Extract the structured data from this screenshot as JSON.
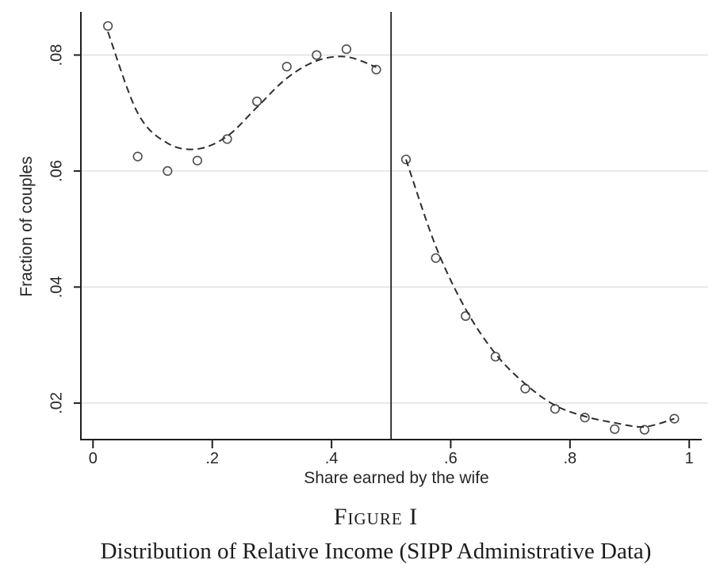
{
  "figure": {
    "label": "Figure I",
    "caption": "Distribution of Relative Income (SIPP Administrative Data)"
  },
  "chart_data": {
    "type": "scatter",
    "title": "",
    "xlabel": "Share earned by the wife",
    "ylabel": "Fraction of couples",
    "xlim": [
      -0.019,
      1.021
    ],
    "ylim": [
      0.0137,
      0.0873
    ],
    "xticks": [
      0,
      0.2,
      0.4,
      0.6,
      0.8,
      1
    ],
    "xtick_labels": [
      "0",
      ".2",
      ".4",
      ".6",
      ".8",
      "1"
    ],
    "yticks": [
      0.02,
      0.04,
      0.06,
      0.08
    ],
    "ytick_labels": [
      ".02",
      ".04",
      ".06",
      ".08"
    ],
    "ytick_label_rotated": true,
    "grid": "horizontal-gridlines-only",
    "legend": "none",
    "colors": {
      "gridline": "#dcdcdc",
      "axis": "#1f1f1f",
      "text": "#262626",
      "marker": "#4d4d4d",
      "fit_line": "#2e2e2e",
      "vline": "#1f1f1f",
      "background": "#ffffff"
    },
    "vline": {
      "x": 0.5
    },
    "series": [
      {
        "name": "binned-scatter",
        "type": "scatter",
        "marker": "open-circle",
        "x": [
          0.025,
          0.075,
          0.125,
          0.175,
          0.225,
          0.275,
          0.325,
          0.375,
          0.425,
          0.475,
          0.525,
          0.575,
          0.625,
          0.675,
          0.725,
          0.775,
          0.825,
          0.875,
          0.925,
          0.975
        ],
        "y": [
          0.085,
          0.0625,
          0.06,
          0.0618,
          0.0655,
          0.072,
          0.078,
          0.08,
          0.081,
          0.0775,
          0.062,
          0.045,
          0.035,
          0.028,
          0.0225,
          0.019,
          0.0175,
          0.0155,
          0.0154,
          0.0173
        ]
      },
      {
        "name": "lowess-fit-left",
        "type": "line",
        "style": "dashed",
        "x": [
          0.025,
          0.075,
          0.125,
          0.175,
          0.225,
          0.275,
          0.325,
          0.375,
          0.425,
          0.475
        ],
        "y": [
          0.084,
          0.07,
          0.0648,
          0.0638,
          0.066,
          0.071,
          0.076,
          0.079,
          0.0797,
          0.0779
        ]
      },
      {
        "name": "lowess-fit-right",
        "type": "line",
        "style": "dashed",
        "x": [
          0.525,
          0.575,
          0.625,
          0.675,
          0.725,
          0.775,
          0.825,
          0.875,
          0.925,
          0.975
        ],
        "y": [
          0.062,
          0.047,
          0.0362,
          0.0285,
          0.0233,
          0.0196,
          0.0177,
          0.0166,
          0.0159,
          0.0173
        ]
      }
    ]
  }
}
